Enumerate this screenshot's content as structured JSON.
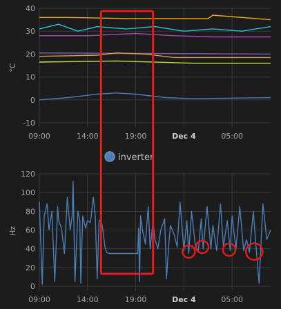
{
  "chart_data": [
    {
      "type": "line",
      "title": "",
      "ylabel": "°C",
      "xlabel": "",
      "ylim": [
        -10,
        40
      ],
      "y_ticks": [
        "40",
        "30",
        "20",
        "10",
        "0",
        "-10"
      ],
      "x_tick_labels": [
        "09:00",
        "14:00",
        "19:00",
        "Dec 4",
        "05:00"
      ],
      "x_hours": [
        0,
        5,
        10,
        15,
        20
      ],
      "x_range_hours": [
        0,
        24
      ],
      "grid": true,
      "series": [
        {
          "color": "#f5a623",
          "x": [
            0,
            3,
            9,
            17.5,
            18,
            24
          ],
          "y": [
            36,
            36,
            35.5,
            35.5,
            37,
            35
          ]
        },
        {
          "color": "#26c6da",
          "x": [
            0,
            2,
            4,
            6,
            9,
            12,
            15,
            18,
            21,
            24
          ],
          "y": [
            31,
            33,
            30,
            32,
            31,
            32,
            30,
            31,
            30,
            32
          ]
        },
        {
          "color": "#ab47bc",
          "x": [
            0,
            5,
            10,
            14,
            18,
            24
          ],
          "y": [
            28,
            28,
            29,
            28,
            27.5,
            27.5
          ]
        },
        {
          "color": "#7e57c2",
          "x": [
            0,
            24
          ],
          "y": [
            20.5,
            20
          ]
        },
        {
          "color": "#e0a040",
          "x": [
            0,
            6,
            8,
            11,
            14,
            24
          ],
          "y": [
            19,
            19.5,
            20.5,
            20,
            18.5,
            18.5
          ]
        },
        {
          "color": "#c6e03a",
          "x": [
            0,
            8,
            16,
            24
          ],
          "y": [
            16.5,
            17,
            16,
            16
          ]
        },
        {
          "color": "#4a7fb8",
          "x": [
            0,
            3,
            6,
            8,
            10,
            13,
            16,
            24
          ],
          "y": [
            0,
            1,
            2.5,
            3,
            2.5,
            1,
            0.5,
            1
          ]
        }
      ]
    },
    {
      "type": "line",
      "title": "",
      "ylabel": "Hz",
      "xlabel": "",
      "ylim": [
        0,
        120
      ],
      "y_ticks": [
        "120",
        "100",
        "80",
        "60",
        "40",
        "20",
        "0"
      ],
      "x_tick_labels": [
        "09:00",
        "14:00",
        "19:00",
        "Dec 4",
        "05:00"
      ],
      "x_hours": [
        0,
        5,
        10,
        15,
        20
      ],
      "x_range_hours": [
        0,
        24
      ],
      "grid": true,
      "legend": "top-left",
      "series": [
        {
          "name": "inverter",
          "color": "#4a7fb8",
          "x": [
            0.0,
            0.3,
            0.5,
            0.8,
            1.0,
            1.3,
            1.6,
            1.9,
            2.0,
            2.3,
            2.6,
            2.9,
            3.2,
            3.4,
            3.5,
            3.7,
            4.0,
            4.2,
            4.3,
            4.5,
            4.8,
            5.0,
            5.3,
            5.6,
            5.8,
            6.0,
            6.2,
            6.4,
            6.6,
            6.8,
            7.0,
            7.2,
            10.2,
            10.3,
            10.4,
            10.5,
            10.7,
            11.0,
            11.3,
            11.5,
            11.8,
            12.0,
            12.3,
            12.6,
            13.0,
            13.2,
            13.4,
            13.6,
            14.0,
            14.3,
            14.6,
            15.0,
            15.3,
            15.5,
            15.8,
            16.2,
            16.5,
            16.8,
            17.0,
            17.4,
            17.8,
            18.0,
            18.4,
            18.8,
            19.1,
            19.5,
            19.8,
            20.0,
            20.4,
            20.8,
            21.2,
            21.5,
            21.8,
            22.2,
            22.5,
            22.8,
            23.2,
            23.6,
            24.0
          ],
          "y": [
            90,
            2,
            75,
            88,
            60,
            80,
            5,
            85,
            70,
            62,
            35,
            95,
            60,
            75,
            112,
            5,
            80,
            70,
            3,
            75,
            62,
            70,
            68,
            95,
            75,
            8,
            70,
            72,
            60,
            42,
            36,
            35,
            35,
            62,
            5,
            75,
            60,
            45,
            85,
            40,
            70,
            50,
            40,
            60,
            72,
            8,
            40,
            65,
            55,
            42,
            90,
            38,
            70,
            35,
            80,
            42,
            38,
            72,
            40,
            85,
            40,
            65,
            38,
            88,
            42,
            70,
            38,
            75,
            40,
            85,
            38,
            50,
            36,
            80,
            40,
            3,
            88,
            50,
            60
          ]
        }
      ]
    }
  ],
  "annotations": {
    "highlight_window_hours": [
      6.4,
      11.8
    ],
    "circled_points": [
      {
        "hour": 15.5,
        "value": 37
      },
      {
        "hour": 16.9,
        "value": 42
      },
      {
        "hour": 19.7,
        "value": 39
      },
      {
        "hour": 22.3,
        "value": 37
      }
    ]
  }
}
